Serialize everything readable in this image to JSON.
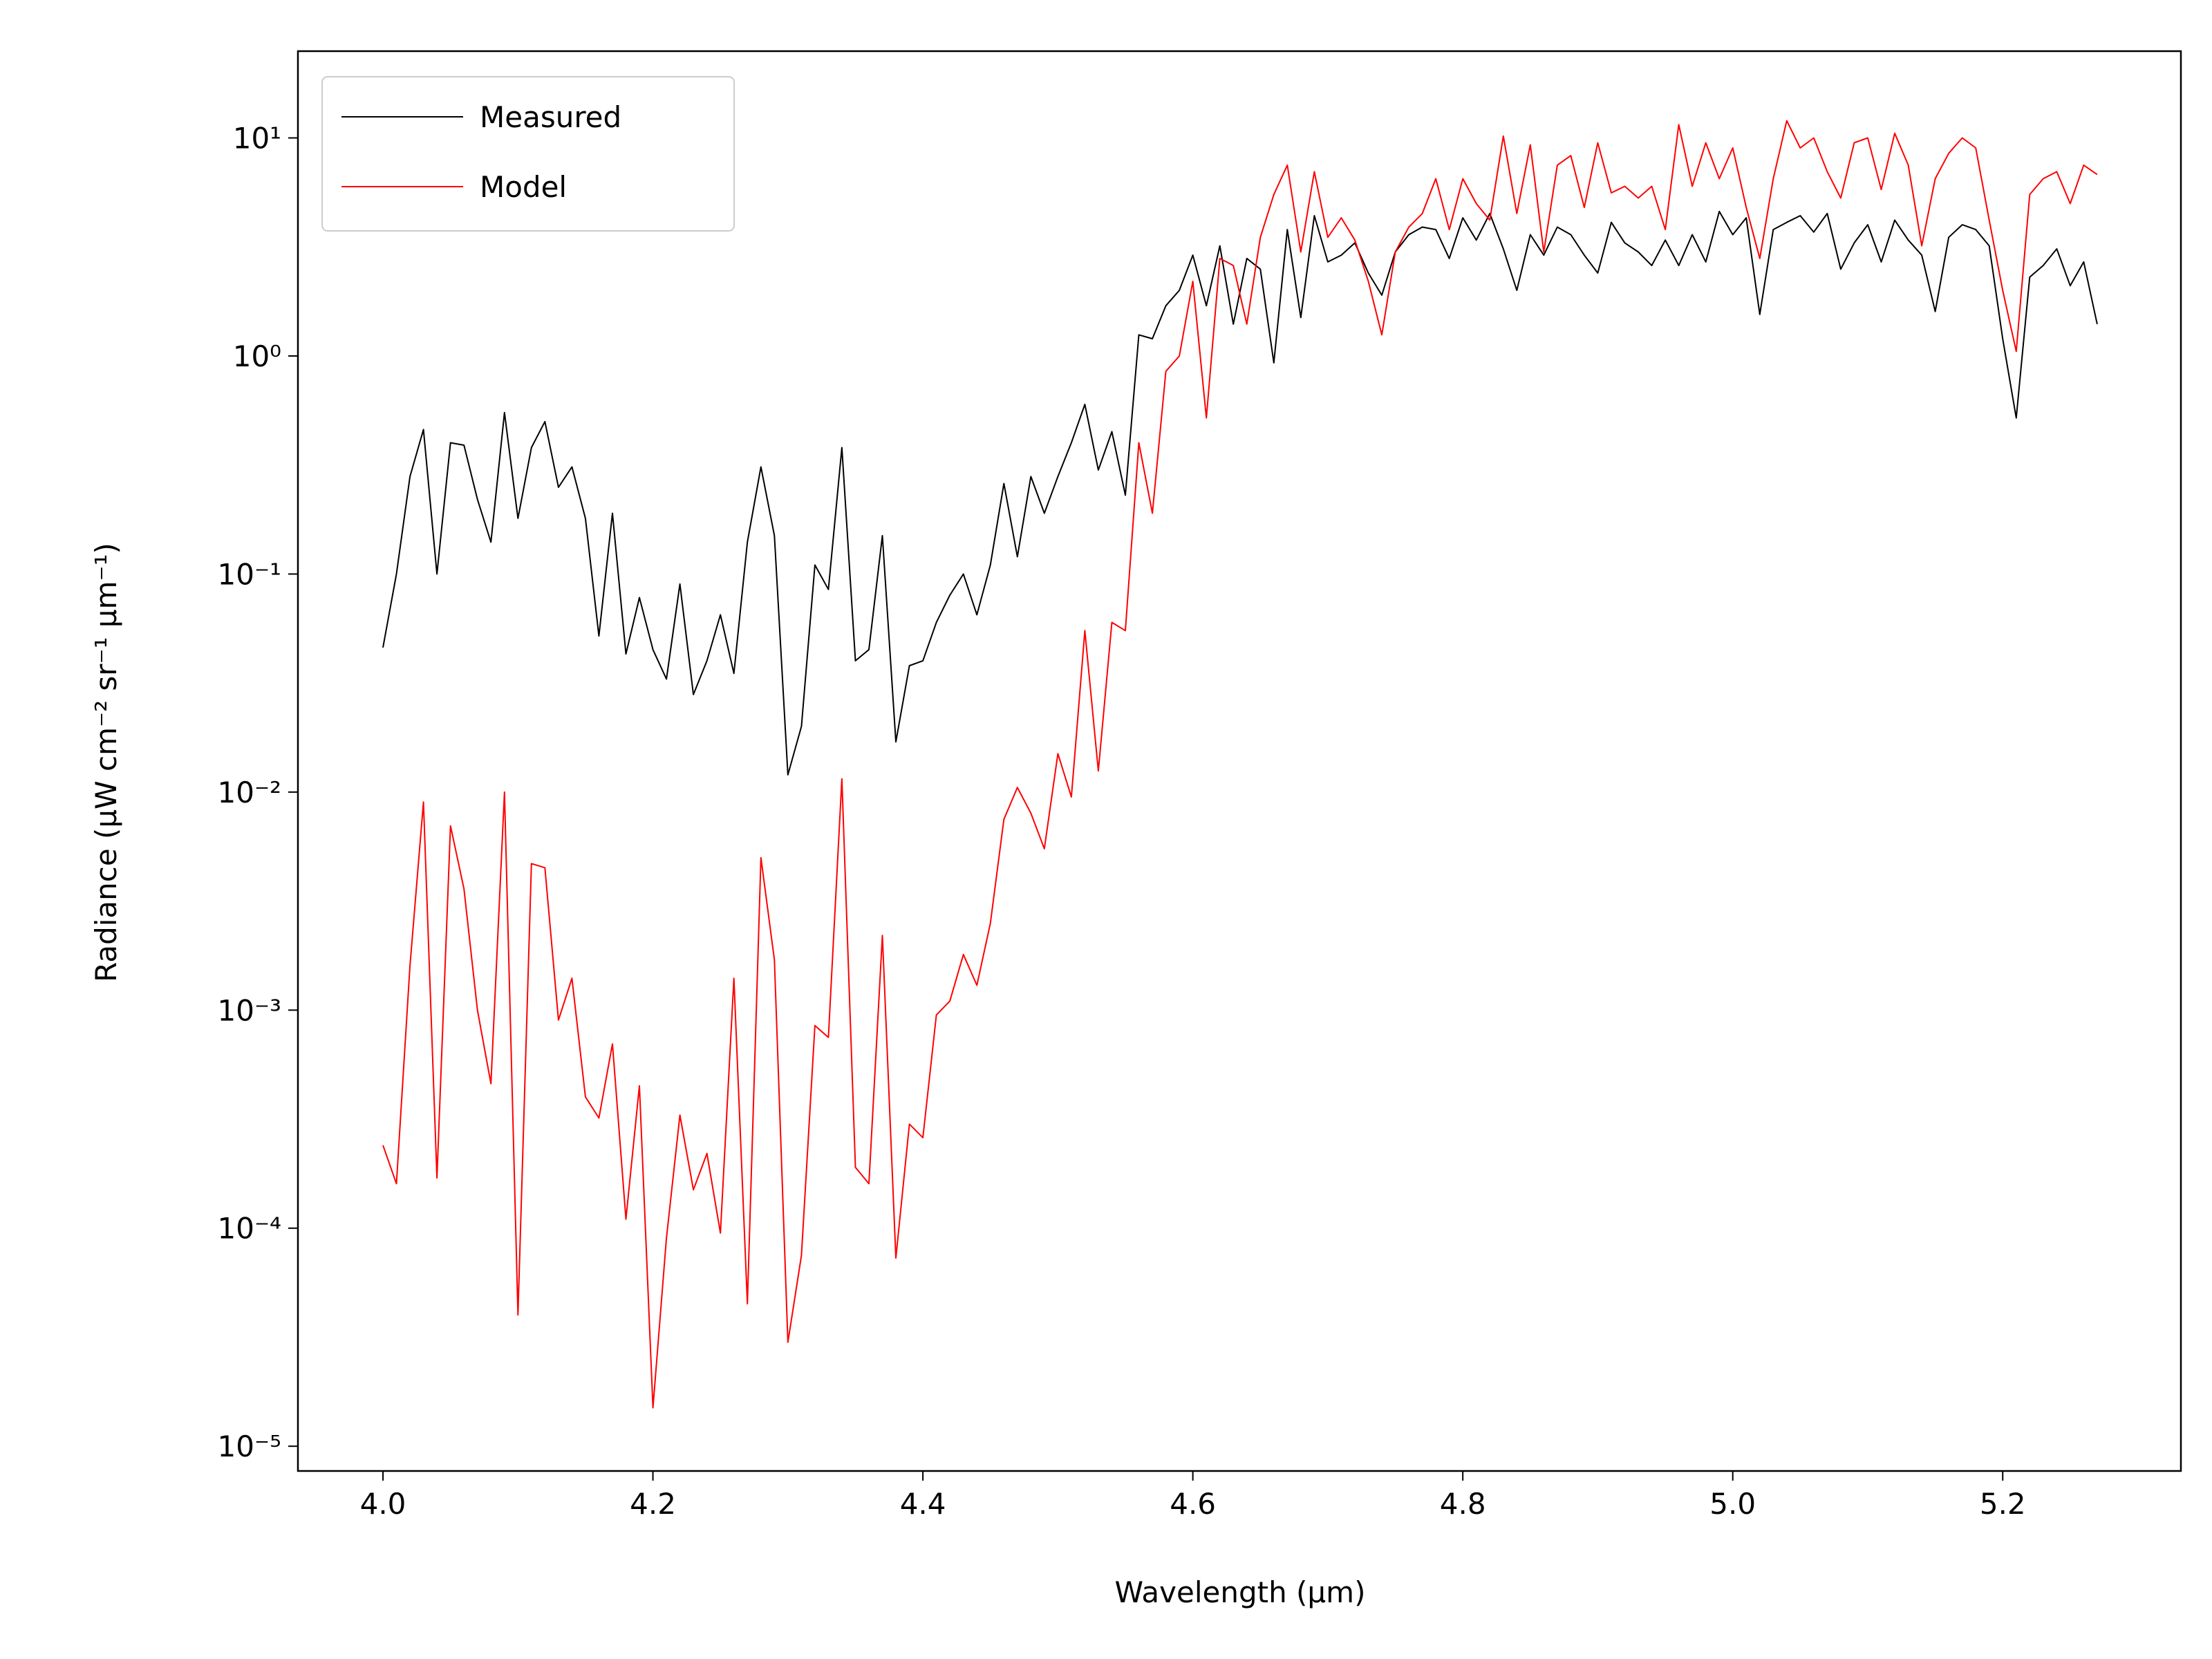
{
  "chart_data": {
    "type": "line",
    "x_label": "Wavelength (μm)",
    "y_label": "Radiance (μW cm⁻² sr⁻¹ μm⁻¹)",
    "log_y": true,
    "legend": "upper left",
    "xlim": [
      3.937,
      5.332
    ],
    "ylim": [
      7.7e-06,
      25
    ],
    "xticks": [
      {
        "value": 4,
        "label": "4.0"
      },
      4.2,
      4.4,
      4.6,
      4.8,
      {
        "value": 5,
        "label": "5.0"
      },
      5.2
    ],
    "yticks": [
      {
        "value": 1e-05,
        "label": "10⁻⁵"
      },
      {
        "value": 0.0001,
        "label": "10⁻⁴"
      },
      {
        "value": 0.001,
        "label": "10⁻³"
      },
      {
        "value": 0.01,
        "label": "10⁻²"
      },
      {
        "value": 0.1,
        "label": "10⁻¹"
      },
      {
        "value": 1,
        "label": "10⁰"
      },
      {
        "value": 10,
        "label": "10¹"
      }
    ],
    "x": [
      4,
      4.01,
      4.02,
      4.03,
      4.04,
      4.05,
      4.06,
      4.07,
      4.08,
      4.09,
      4.1,
      4.11,
      4.12,
      4.13,
      4.14,
      4.15,
      4.16,
      4.17,
      4.18,
      4.19,
      4.2,
      4.21,
      4.22,
      4.23,
      4.24,
      4.25,
      4.26,
      4.27,
      4.28,
      4.29,
      4.3,
      4.31,
      4.32,
      4.33,
      4.34,
      4.35,
      4.36,
      4.37,
      4.38,
      4.39,
      4.4,
      4.41,
      4.42,
      4.43,
      4.44,
      4.45,
      4.46,
      4.47,
      4.48,
      4.49,
      4.5,
      4.51,
      4.52,
      4.53,
      4.54,
      4.55,
      4.56,
      4.57,
      4.58,
      4.59,
      4.6,
      4.61,
      4.62,
      4.63,
      4.64,
      4.65,
      4.66,
      4.67,
      4.68,
      4.69,
      4.7,
      4.71,
      4.72,
      4.73,
      4.74,
      4.75,
      4.76,
      4.77,
      4.78,
      4.79,
      4.8,
      4.81,
      4.82,
      4.83,
      4.84,
      4.85,
      4.86,
      4.87,
      4.88,
      4.89,
      4.9,
      4.91,
      4.92,
      4.93,
      4.94,
      4.95,
      4.96,
      4.97,
      4.98,
      4.99,
      5,
      5.01,
      5.02,
      5.03,
      5.04,
      5.05,
      5.06,
      5.07,
      5.08,
      5.09,
      5.1,
      5.11,
      5.12,
      5.13,
      5.14,
      5.15,
      5.16,
      5.17,
      5.18,
      5.19,
      5.2,
      5.21,
      5.22,
      5.23,
      5.24,
      5.25,
      5.26,
      5.27
    ],
    "series": [
      {
        "name": "Measured",
        "color": "#000000",
        "values": [
          0.046,
          0.1,
          0.28,
          0.46,
          0.1,
          0.4,
          0.39,
          0.22,
          0.14,
          0.55,
          0.18,
          0.38,
          0.5,
          0.25,
          0.31,
          0.18,
          0.052,
          0.19,
          0.043,
          0.078,
          0.045,
          0.033,
          0.09,
          0.028,
          0.04,
          0.065,
          0.035,
          0.14,
          0.31,
          0.15,
          0.012,
          0.02,
          0.11,
          0.085,
          0.38,
          0.04,
          0.045,
          0.15,
          0.017,
          0.038,
          0.04,
          0.06,
          0.08,
          0.1,
          0.065,
          0.11,
          0.26,
          0.12,
          0.28,
          0.19,
          0.28,
          0.4,
          0.6,
          0.3,
          0.45,
          0.23,
          1.25,
          1.2,
          1.7,
          2.0,
          2.9,
          1.7,
          3.2,
          1.4,
          2.8,
          2.5,
          0.93,
          3.8,
          1.5,
          4.4,
          2.7,
          2.9,
          3.3,
          2.4,
          1.9,
          3.0,
          3.6,
          3.9,
          3.8,
          2.8,
          4.3,
          3.4,
          4.5,
          3.1,
          2.0,
          3.6,
          2.9,
          3.9,
          3.6,
          2.9,
          2.4,
          4.1,
          3.3,
          3.0,
          2.6,
          3.4,
          2.6,
          3.6,
          2.7,
          4.6,
          3.6,
          4.3,
          1.55,
          3.8,
          4.1,
          4.4,
          3.7,
          4.5,
          2.5,
          3.3,
          4.0,
          2.7,
          4.2,
          3.4,
          2.9,
          1.6,
          3.5,
          4.0,
          3.8,
          3.2,
          1.2,
          0.52,
          2.3,
          2.6,
          3.1,
          2.1,
          2.7,
          1.4
        ]
      },
      {
        "name": "Model",
        "color": "#ff0000",
        "values": [
          0.00024,
          0.00016,
          0.0016,
          0.009,
          0.00017,
          0.007,
          0.0036,
          0.001,
          0.00046,
          0.01,
          4e-05,
          0.0047,
          0.0045,
          0.0009,
          0.0014,
          0.0004,
          0.00032,
          0.0007,
          0.00011,
          0.00045,
          1.5e-05,
          9e-05,
          0.00033,
          0.00015,
          0.00022,
          9.5e-05,
          0.0014,
          4.5e-05,
          0.005,
          0.0017,
          3e-05,
          7.5e-05,
          0.00085,
          0.00075,
          0.0115,
          0.00019,
          0.00016,
          0.0022,
          7.3e-05,
          0.0003,
          0.00026,
          0.00095,
          0.0011,
          0.0018,
          0.0013,
          0.0025,
          0.0075,
          0.0105,
          0.008,
          0.0055,
          0.015,
          0.0095,
          0.055,
          0.0125,
          0.06,
          0.055,
          0.4,
          0.19,
          0.85,
          1.0,
          2.2,
          0.52,
          2.8,
          2.6,
          1.4,
          3.5,
          5.5,
          7.5,
          3.0,
          7.0,
          3.5,
          4.3,
          3.4,
          2.2,
          1.25,
          3.0,
          3.9,
          4.5,
          6.5,
          3.8,
          6.5,
          5.0,
          4.2,
          10.2,
          4.5,
          9.3,
          3.0,
          7.5,
          8.3,
          4.8,
          9.5,
          5.6,
          6.0,
          5.3,
          6.0,
          3.8,
          11.5,
          6.0,
          9.5,
          6.5,
          9.0,
          4.8,
          2.8,
          6.5,
          12,
          9.0,
          10,
          7.0,
          5.3,
          9.5,
          10,
          5.8,
          10.5,
          7.5,
          3.2,
          6.5,
          8.5,
          10,
          9.0,
          4.2,
          2.0,
          1.05,
          5.5,
          6.5,
          7.0,
          5.0,
          7.5,
          6.8
        ]
      }
    ]
  }
}
